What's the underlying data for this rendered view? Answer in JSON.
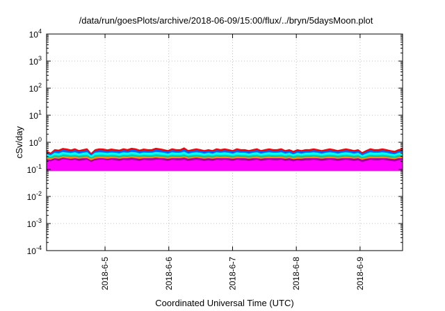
{
  "chart_data": {
    "type": "area",
    "title": "/data/run/goesPlots/archive/2018-06-09/15:00/flux/../bryn/5daysMoon.plot",
    "xlabel": "Coordinated Universal Time (UTC)",
    "ylabel": "cSv/day",
    "yscale": "log",
    "ylim": [
      0.0001,
      10000
    ],
    "y_ticks": [
      {
        "exp": "-4",
        "value": 0.0001
      },
      {
        "exp": "-3",
        "value": 0.001
      },
      {
        "exp": "-2",
        "value": 0.01
      },
      {
        "exp": "-1",
        "value": 0.1
      },
      {
        "exp": "0",
        "value": 1
      },
      {
        "exp": "1",
        "value": 10
      },
      {
        "exp": "2",
        "value": 100
      },
      {
        "exp": "3",
        "value": 1000
      },
      {
        "exp": "4",
        "value": 10000
      }
    ],
    "xlim": [
      "2018-06-04 02:00",
      "2018-06-09 16:00"
    ],
    "x_ticks": [
      "2018-6-5",
      "2018-6-6",
      "2018-6-7",
      "2018-6-8",
      "2018-6-9"
    ],
    "x_tick_dates": [
      "2018-06-05 00:00",
      "2018-06-06 00:00",
      "2018-06-07 00:00",
      "2018-06-08 00:00",
      "2018-06-09 00:00"
    ],
    "grid": true,
    "series": [
      {
        "color": "#ff00ff",
        "values": [
          0.21,
          0.19,
          0.22,
          0.2,
          0.23,
          0.22,
          0.21,
          0.22,
          0.2,
          0.21,
          0.22,
          0.18,
          0.21,
          0.22,
          0.22,
          0.21,
          0.22,
          0.21,
          0.2,
          0.22,
          0.21,
          0.22,
          0.21,
          0.2,
          0.22,
          0.21,
          0.21,
          0.22,
          0.22,
          0.21,
          0.2,
          0.22,
          0.21,
          0.21,
          0.22,
          0.2,
          0.21,
          0.22,
          0.21,
          0.2,
          0.21,
          0.2,
          0.22,
          0.21,
          0.22,
          0.21,
          0.2,
          0.22,
          0.21,
          0.21,
          0.2,
          0.21,
          0.22,
          0.2,
          0.21,
          0.22,
          0.21,
          0.21,
          0.22,
          0.2,
          0.21,
          0.19,
          0.21,
          0.2,
          0.21,
          0.21,
          0.22,
          0.21,
          0.2,
          0.21,
          0.22,
          0.21,
          0.2,
          0.21,
          0.22,
          0.21,
          0.2,
          0.21,
          0.18,
          0.2,
          0.22,
          0.21,
          0.21,
          0.22,
          0.21,
          0.2,
          0.19,
          0.21,
          0.22
        ]
      },
      {
        "color": "#a000a0",
        "values": [
          0.23,
          0.22,
          0.25,
          0.24,
          0.26,
          0.25,
          0.24,
          0.25,
          0.24,
          0.25,
          0.25,
          0.21,
          0.24,
          0.25,
          0.25,
          0.24,
          0.25,
          0.25,
          0.24,
          0.25,
          0.25,
          0.26,
          0.25,
          0.24,
          0.25,
          0.25,
          0.25,
          0.26,
          0.25,
          0.25,
          0.24,
          0.25,
          0.25,
          0.25,
          0.26,
          0.24,
          0.25,
          0.26,
          0.25,
          0.24,
          0.25,
          0.24,
          0.25,
          0.25,
          0.25,
          0.25,
          0.24,
          0.25,
          0.25,
          0.25,
          0.24,
          0.25,
          0.25,
          0.24,
          0.25,
          0.25,
          0.25,
          0.25,
          0.25,
          0.24,
          0.25,
          0.23,
          0.24,
          0.24,
          0.25,
          0.25,
          0.25,
          0.25,
          0.24,
          0.25,
          0.25,
          0.25,
          0.24,
          0.25,
          0.25,
          0.25,
          0.24,
          0.25,
          0.22,
          0.24,
          0.25,
          0.25,
          0.25,
          0.25,
          0.25,
          0.24,
          0.23,
          0.25,
          0.25
        ]
      },
      {
        "color": "#ff8c00",
        "values": [
          0.26,
          0.25,
          0.28,
          0.27,
          0.3,
          0.29,
          0.28,
          0.29,
          0.27,
          0.28,
          0.29,
          0.24,
          0.28,
          0.29,
          0.29,
          0.28,
          0.29,
          0.28,
          0.27,
          0.29,
          0.28,
          0.3,
          0.29,
          0.28,
          0.29,
          0.28,
          0.28,
          0.3,
          0.29,
          0.28,
          0.27,
          0.29,
          0.28,
          0.28,
          0.3,
          0.27,
          0.28,
          0.29,
          0.28,
          0.27,
          0.28,
          0.27,
          0.29,
          0.28,
          0.29,
          0.28,
          0.27,
          0.29,
          0.28,
          0.28,
          0.27,
          0.28,
          0.29,
          0.27,
          0.28,
          0.29,
          0.28,
          0.28,
          0.29,
          0.27,
          0.28,
          0.26,
          0.28,
          0.27,
          0.28,
          0.28,
          0.29,
          0.28,
          0.27,
          0.28,
          0.29,
          0.28,
          0.27,
          0.28,
          0.29,
          0.28,
          0.27,
          0.28,
          0.25,
          0.27,
          0.29,
          0.28,
          0.28,
          0.29,
          0.28,
          0.27,
          0.26,
          0.28,
          0.29
        ]
      },
      {
        "color": "#00c8a0",
        "values": [
          0.3,
          0.28,
          0.33,
          0.31,
          0.35,
          0.34,
          0.32,
          0.34,
          0.31,
          0.33,
          0.34,
          0.27,
          0.33,
          0.34,
          0.34,
          0.32,
          0.34,
          0.33,
          0.31,
          0.34,
          0.33,
          0.35,
          0.34,
          0.32,
          0.34,
          0.33,
          0.33,
          0.35,
          0.34,
          0.33,
          0.31,
          0.34,
          0.33,
          0.33,
          0.35,
          0.31,
          0.33,
          0.34,
          0.33,
          0.31,
          0.33,
          0.31,
          0.34,
          0.33,
          0.34,
          0.33,
          0.31,
          0.34,
          0.33,
          0.33,
          0.31,
          0.33,
          0.34,
          0.31,
          0.33,
          0.34,
          0.33,
          0.33,
          0.34,
          0.31,
          0.33,
          0.3,
          0.33,
          0.31,
          0.33,
          0.33,
          0.34,
          0.33,
          0.31,
          0.33,
          0.34,
          0.33,
          0.31,
          0.33,
          0.34,
          0.33,
          0.31,
          0.33,
          0.28,
          0.31,
          0.34,
          0.33,
          0.33,
          0.34,
          0.33,
          0.31,
          0.3,
          0.33,
          0.34
        ]
      },
      {
        "color": "#00ffff",
        "values": [
          0.36,
          0.32,
          0.4,
          0.38,
          0.43,
          0.41,
          0.39,
          0.42,
          0.37,
          0.4,
          0.42,
          0.31,
          0.4,
          0.42,
          0.41,
          0.39,
          0.41,
          0.4,
          0.38,
          0.42,
          0.4,
          0.43,
          0.42,
          0.38,
          0.41,
          0.4,
          0.4,
          0.43,
          0.42,
          0.4,
          0.37,
          0.42,
          0.4,
          0.4,
          0.44,
          0.37,
          0.4,
          0.42,
          0.4,
          0.37,
          0.4,
          0.37,
          0.42,
          0.4,
          0.42,
          0.4,
          0.37,
          0.42,
          0.4,
          0.4,
          0.37,
          0.4,
          0.42,
          0.37,
          0.4,
          0.42,
          0.4,
          0.4,
          0.42,
          0.37,
          0.4,
          0.35,
          0.4,
          0.37,
          0.4,
          0.4,
          0.42,
          0.4,
          0.37,
          0.4,
          0.42,
          0.4,
          0.37,
          0.4,
          0.42,
          0.4,
          0.37,
          0.4,
          0.32,
          0.37,
          0.42,
          0.4,
          0.4,
          0.42,
          0.4,
          0.37,
          0.35,
          0.4,
          0.42
        ]
      },
      {
        "color": "#0064ff",
        "values": [
          0.42,
          0.36,
          0.47,
          0.45,
          0.51,
          0.49,
          0.46,
          0.5,
          0.44,
          0.47,
          0.5,
          0.35,
          0.47,
          0.5,
          0.49,
          0.46,
          0.49,
          0.47,
          0.45,
          0.5,
          0.47,
          0.52,
          0.5,
          0.45,
          0.49,
          0.47,
          0.47,
          0.52,
          0.5,
          0.47,
          0.44,
          0.5,
          0.47,
          0.47,
          0.53,
          0.44,
          0.47,
          0.5,
          0.47,
          0.44,
          0.47,
          0.44,
          0.5,
          0.47,
          0.5,
          0.47,
          0.44,
          0.5,
          0.47,
          0.47,
          0.44,
          0.47,
          0.5,
          0.44,
          0.47,
          0.5,
          0.47,
          0.47,
          0.5,
          0.44,
          0.47,
          0.41,
          0.47,
          0.44,
          0.47,
          0.47,
          0.5,
          0.47,
          0.44,
          0.47,
          0.5,
          0.47,
          0.44,
          0.47,
          0.5,
          0.47,
          0.44,
          0.47,
          0.37,
          0.44,
          0.5,
          0.47,
          0.47,
          0.5,
          0.47,
          0.44,
          0.41,
          0.47,
          0.5
        ]
      },
      {
        "color": "#ff0000",
        "values": [
          0.48,
          0.4,
          0.54,
          0.52,
          0.6,
          0.57,
          0.53,
          0.58,
          0.5,
          0.54,
          0.58,
          0.39,
          0.54,
          0.58,
          0.57,
          0.53,
          0.57,
          0.54,
          0.52,
          0.58,
          0.54,
          0.61,
          0.58,
          0.52,
          0.57,
          0.54,
          0.54,
          0.61,
          0.58,
          0.54,
          0.5,
          0.58,
          0.54,
          0.54,
          0.63,
          0.5,
          0.54,
          0.58,
          0.54,
          0.5,
          0.54,
          0.5,
          0.58,
          0.54,
          0.58,
          0.54,
          0.5,
          0.58,
          0.54,
          0.54,
          0.5,
          0.54,
          0.58,
          0.5,
          0.54,
          0.58,
          0.54,
          0.54,
          0.58,
          0.5,
          0.54,
          0.47,
          0.54,
          0.5,
          0.54,
          0.54,
          0.58,
          0.54,
          0.5,
          0.54,
          0.58,
          0.54,
          0.5,
          0.54,
          0.58,
          0.54,
          0.5,
          0.54,
          0.42,
          0.5,
          0.58,
          0.54,
          0.54,
          0.58,
          0.54,
          0.5,
          0.47,
          0.54,
          0.58
        ]
      }
    ]
  }
}
